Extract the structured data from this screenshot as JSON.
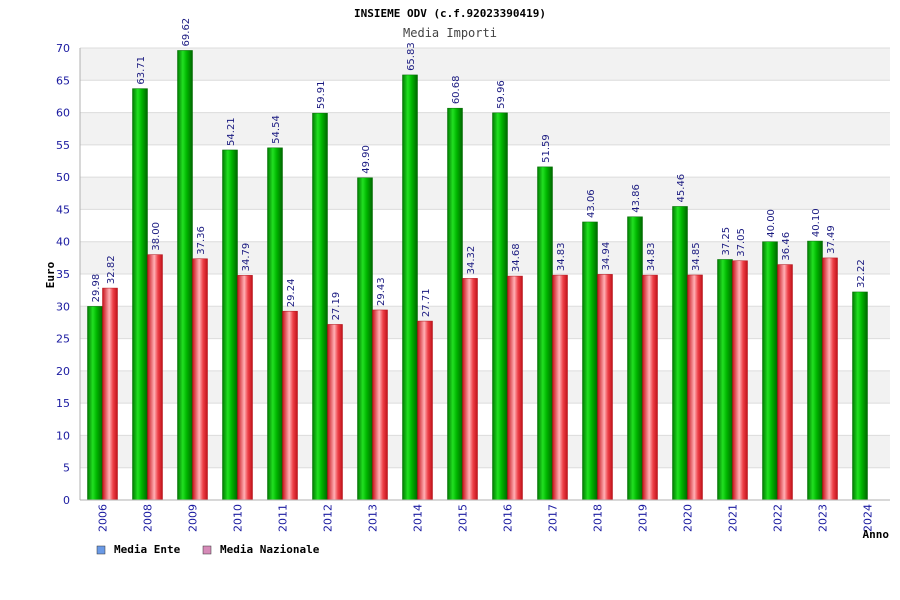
{
  "chart_data": {
    "type": "bar",
    "title": "INSIEME ODV (c.f.92023390419)",
    "subtitle": "Media Importi",
    "ylabel": "Euro",
    "xlabel": "Anno",
    "ylim": [
      0,
      70
    ],
    "ytick_step": 5,
    "grid": true,
    "legend_position": "bottom-left",
    "categories": [
      "2006",
      "2008",
      "2009",
      "2010",
      "2011",
      "2012",
      "2013",
      "2014",
      "2015",
      "2016",
      "2017",
      "2018",
      "2019",
      "2020",
      "2021",
      "2022",
      "2023",
      "2024"
    ],
    "series": [
      {
        "name": "Media Ente",
        "color": "#00b000",
        "legend_color": "#6a9ae6",
        "values": [
          29.98,
          63.71,
          69.62,
          54.21,
          54.54,
          59.91,
          49.9,
          65.83,
          60.68,
          59.96,
          51.59,
          43.06,
          43.86,
          45.46,
          37.25,
          40.0,
          40.1,
          32.22
        ],
        "labels": [
          "29.98",
          "63.71",
          "69.62",
          "54.21",
          "54.54",
          "59.91",
          "49.90",
          "65.83",
          "60.68",
          "59.96",
          "51.59",
          "43.06",
          "43.86",
          "45.46",
          "37.25",
          "40.00",
          "40.10",
          "32.22"
        ]
      },
      {
        "name": "Media Nazionale",
        "color": "#e8333c",
        "legend_color": "#d68ab8",
        "values": [
          32.82,
          38.0,
          37.36,
          34.79,
          29.24,
          27.19,
          29.43,
          27.71,
          34.32,
          34.68,
          34.83,
          34.94,
          34.83,
          34.85,
          37.05,
          36.46,
          37.49,
          null
        ],
        "labels": [
          "32.82",
          "38.00",
          "37.36",
          "34.79",
          "29.24",
          "27.19",
          "29.43",
          "27.71",
          "34.32",
          "34.68",
          "34.83",
          "34.94",
          "34.83",
          "34.85",
          "37.05",
          "36.46",
          "37.49",
          null
        ]
      }
    ]
  }
}
